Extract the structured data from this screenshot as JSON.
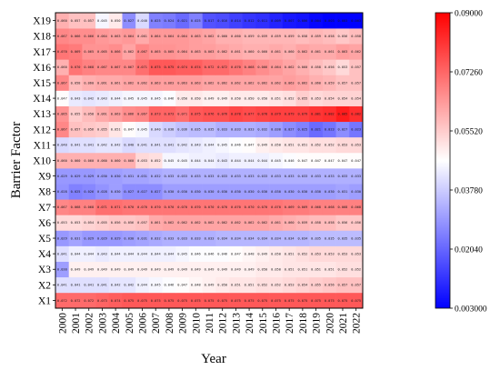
{
  "chart_data": {
    "type": "heatmap",
    "title": "",
    "xlabel": "Year",
    "ylabel": "Barrier Factor",
    "x": [
      "2000",
      "2001",
      "2002",
      "2003",
      "2004",
      "2005",
      "2006",
      "2007",
      "2008",
      "2009",
      "2010",
      "2011",
      "2012",
      "2013",
      "2014",
      "2015",
      "2016",
      "2017",
      "2018",
      "2019",
      "2020",
      "2021",
      "2022"
    ],
    "y": [
      "X1",
      "X2",
      "X3",
      "X4",
      "X5",
      "X6",
      "X7",
      "X8",
      "X9",
      "X10",
      "X11",
      "X12",
      "X13",
      "X14",
      "X15",
      "X16",
      "X17",
      "X18",
      "X19"
    ],
    "colorbar": {
      "min": 0.003,
      "max": 0.09,
      "ticks": [
        "0.003000",
        "0.02040",
        "0.03780",
        "0.05520",
        "0.07260",
        "0.09000"
      ],
      "colors": [
        "#0000ff",
        "#ffffff",
        "#ff0000"
      ]
    },
    "row_values": {
      "X19": [
        0.06,
        0.057,
        0.057,
        0.045,
        0.05,
        0.027,
        0.04,
        0.025,
        0.024,
        0.021,
        0.025,
        0.017,
        0.016,
        0.014,
        0.012,
        0.011,
        0.009,
        0.007,
        0.006,
        0.004,
        0.003,
        0.003,
        0.003
      ],
      "X18": [
        0.067,
        0.066,
        0.066,
        0.064,
        0.063,
        0.064,
        0.061,
        0.064,
        0.064,
        0.064,
        0.063,
        0.062,
        0.06,
        0.06,
        0.059,
        0.059,
        0.059,
        0.059,
        0.058,
        0.059,
        0.058,
        0.056,
        0.058
      ],
      "X17": [
        0.07,
        0.069,
        0.065,
        0.065,
        0.066,
        0.062,
        0.067,
        0.065,
        0.065,
        0.064,
        0.063,
        0.063,
        0.062,
        0.061,
        0.06,
        0.06,
        0.061,
        0.06,
        0.062,
        0.061,
        0.061,
        0.063,
        0.062
      ],
      "X16": [
        0.06,
        0.07,
        0.068,
        0.067,
        0.067,
        0.067,
        0.071,
        0.075,
        0.075,
        0.074,
        0.074,
        0.072,
        0.072,
        0.07,
        0.068,
        0.066,
        0.064,
        0.062,
        0.06,
        0.058,
        0.056,
        0.053,
        0.057
      ],
      "X15": [
        0.067,
        0.058,
        0.06,
        0.061,
        0.061,
        0.062,
        0.062,
        0.063,
        0.063,
        0.063,
        0.063,
        0.062,
        0.062,
        0.062,
        0.062,
        0.062,
        0.062,
        0.063,
        0.062,
        0.06,
        0.059,
        0.057,
        0.057
      ],
      "X14": [
        0.047,
        0.043,
        0.042,
        0.043,
        0.044,
        0.045,
        0.045,
        0.045,
        0.046,
        0.05,
        0.05,
        0.049,
        0.049,
        0.05,
        0.05,
        0.05,
        0.051,
        0.052,
        0.055,
        0.053,
        0.054,
        0.054,
        0.054
      ],
      "X13": [
        0.065,
        0.055,
        0.058,
        0.061,
        0.063,
        0.066,
        0.067,
        0.073,
        0.073,
        0.071,
        0.075,
        0.076,
        0.076,
        0.078,
        0.077,
        0.078,
        0.079,
        0.079,
        0.079,
        0.081,
        0.082,
        0.085,
        0.082
      ],
      "X12": [
        0.067,
        0.057,
        0.056,
        0.055,
        0.051,
        0.047,
        0.045,
        0.04,
        0.038,
        0.036,
        0.035,
        0.035,
        0.033,
        0.033,
        0.033,
        0.032,
        0.03,
        0.027,
        0.025,
        0.021,
        0.023,
        0.027,
        0.023
      ],
      "X11": [
        0.04,
        0.041,
        0.041,
        0.042,
        0.042,
        0.04,
        0.041,
        0.041,
        0.041,
        0.042,
        0.043,
        0.044,
        0.045,
        0.046,
        0.047,
        0.049,
        0.05,
        0.051,
        0.051,
        0.052,
        0.052,
        0.053,
        0.053
      ],
      "X10": [
        0.06,
        0.06,
        0.06,
        0.06,
        0.06,
        0.06,
        0.053,
        0.052,
        0.045,
        0.045,
        0.044,
        0.044,
        0.043,
        0.044,
        0.044,
        0.044,
        0.045,
        0.046,
        0.047,
        0.047,
        0.047,
        0.047,
        0.047
      ],
      "X9": [
        0.029,
        0.029,
        0.029,
        0.03,
        0.03,
        0.031,
        0.031,
        0.032,
        0.033,
        0.033,
        0.033,
        0.033,
        0.033,
        0.033,
        0.033,
        0.033,
        0.033,
        0.033,
        0.033,
        0.033,
        0.033,
        0.033,
        0.033
      ],
      "X8": [
        0.028,
        0.025,
        0.026,
        0.028,
        0.03,
        0.027,
        0.027,
        0.027,
        0.03,
        0.03,
        0.03,
        0.03,
        0.03,
        0.03,
        0.03,
        0.03,
        0.03,
        0.03,
        0.03,
        0.03,
        0.03,
        0.031,
        0.03
      ],
      "X7": [
        0.067,
        0.068,
        0.068,
        0.071,
        0.071,
        0.07,
        0.07,
        0.07,
        0.07,
        0.07,
        0.07,
        0.07,
        0.07,
        0.07,
        0.07,
        0.07,
        0.07,
        0.069,
        0.069,
        0.068,
        0.068,
        0.068,
        0.068
      ],
      "X6": [
        0.053,
        0.053,
        0.054,
        0.055,
        0.056,
        0.056,
        0.057,
        0.061,
        0.062,
        0.062,
        0.062,
        0.062,
        0.062,
        0.062,
        0.062,
        0.062,
        0.061,
        0.06,
        0.059,
        0.058,
        0.058,
        0.056,
        0.056
      ],
      "X5": [
        0.029,
        0.031,
        0.029,
        0.029,
        0.029,
        0.03,
        0.031,
        0.032,
        0.033,
        0.033,
        0.033,
        0.033,
        0.034,
        0.034,
        0.034,
        0.034,
        0.034,
        0.034,
        0.034,
        0.035,
        0.035,
        0.035,
        0.035
      ],
      "X4": [
        0.041,
        0.044,
        0.044,
        0.043,
        0.044,
        0.044,
        0.044,
        0.044,
        0.044,
        0.045,
        0.046,
        0.046,
        0.046,
        0.047,
        0.048,
        0.049,
        0.05,
        0.051,
        0.052,
        0.053,
        0.053,
        0.053,
        0.053
      ],
      "X3": [
        0.03,
        0.049,
        0.049,
        0.049,
        0.049,
        0.049,
        0.049,
        0.049,
        0.049,
        0.049,
        0.049,
        0.049,
        0.049,
        0.049,
        0.049,
        0.05,
        0.05,
        0.051,
        0.051,
        0.051,
        0.051,
        0.052,
        0.052
      ],
      "X2": [
        0.041,
        0.041,
        0.041,
        0.041,
        0.042,
        0.042,
        0.044,
        0.045,
        0.046,
        0.047,
        0.048,
        0.049,
        0.05,
        0.051,
        0.051,
        0.052,
        0.052,
        0.053,
        0.054,
        0.055,
        0.056,
        0.057,
        0.057
      ],
      "X1": [
        0.072,
        0.072,
        0.072,
        0.073,
        0.074,
        0.075,
        0.075,
        0.075,
        0.075,
        0.075,
        0.075,
        0.075,
        0.075,
        0.075,
        0.075,
        0.075,
        0.075,
        0.075,
        0.075,
        0.075,
        0.075,
        0.075,
        0.075
      ]
    }
  }
}
